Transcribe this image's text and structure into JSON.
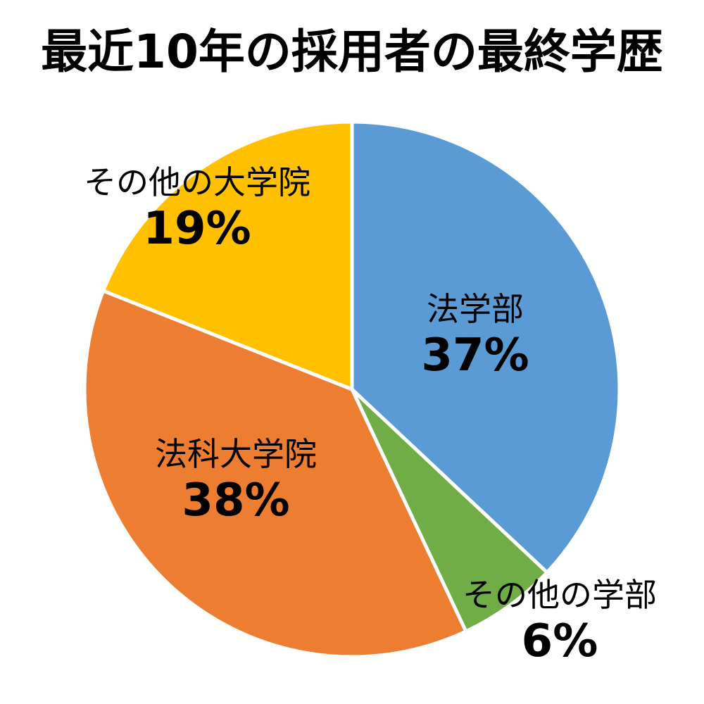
{
  "chart_data": {
    "type": "pie",
    "title": "最近10年の採用者の最終学歴",
    "slices": [
      {
        "label": "法学部",
        "value": 37,
        "display": "37%",
        "color": "#5b9bd5"
      },
      {
        "label": "その他の学部",
        "value": 6,
        "display": "6%",
        "color": "#70ad47"
      },
      {
        "label": "法科大学院",
        "value": 38,
        "display": "38%",
        "color": "#ed7d31"
      },
      {
        "label": "その他の大学院",
        "value": 19,
        "display": "19%",
        "color": "#ffc000"
      }
    ],
    "start_angle": "12 o'clock",
    "direction": "clockwise",
    "legend": "none"
  }
}
